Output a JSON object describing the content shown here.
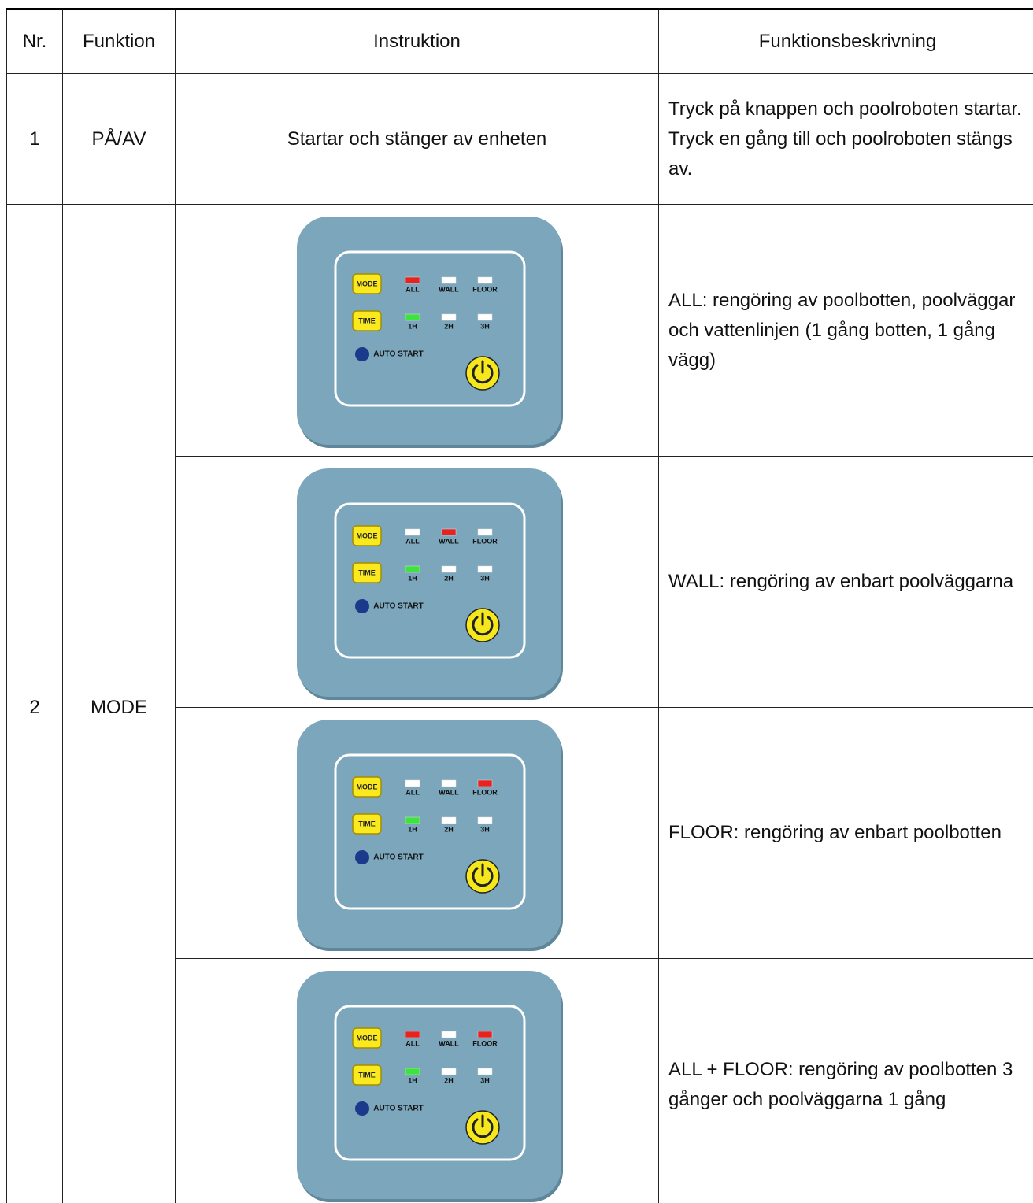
{
  "table": {
    "header": [
      "Nr.",
      "Funktion",
      "Instruktion",
      "Funktionsbeskrivning"
    ],
    "rows": [
      {
        "nr": "1",
        "function": "PÅ/AV",
        "instruction": "Startar och stänger av enheten",
        "description": [
          "Tryck på knappen och poolroboten startar.",
          "Tryck en gång till och poolroboten stängs av."
        ]
      },
      {
        "nr": "2",
        "function": "MODE",
        "steps": [
          {
            "mode_leds": [
              "#e52421",
              "#ffffff",
              "#ffffff"
            ],
            "time_leds": [
              "#3fe33f",
              "#ffffff",
              "#ffffff"
            ],
            "description": "ALL: rengöring av poolbotten, poolväggar och vattenlinjen (1 gång botten, 1 gång vägg)"
          },
          {
            "mode_leds": [
              "#ffffff",
              "#e52421",
              "#ffffff"
            ],
            "time_leds": [
              "#3fe33f",
              "#ffffff",
              "#ffffff"
            ],
            "description": "WALL: rengöring av enbart poolväggarna"
          },
          {
            "mode_leds": [
              "#ffffff",
              "#ffffff",
              "#e52421"
            ],
            "time_leds": [
              "#3fe33f",
              "#ffffff",
              "#ffffff"
            ],
            "description": "FLOOR: rengöring av enbart poolbotten"
          },
          {
            "mode_leds": [
              "#e52421",
              "#ffffff",
              "#e52421"
            ],
            "time_leds": [
              "#3fe33f",
              "#ffffff",
              "#ffffff"
            ],
            "description": "ALL + FLOOR: rengöring av poolbotten 3 gånger och poolväggarna 1 gång"
          }
        ]
      }
    ]
  },
  "panel": {
    "buttons": [
      "MODE",
      "TIME"
    ],
    "mode_labels": [
      "ALL",
      "WALL",
      "FLOOR"
    ],
    "time_labels": [
      "1H",
      "2H",
      "3H"
    ],
    "auto_start": "AUTO START"
  }
}
